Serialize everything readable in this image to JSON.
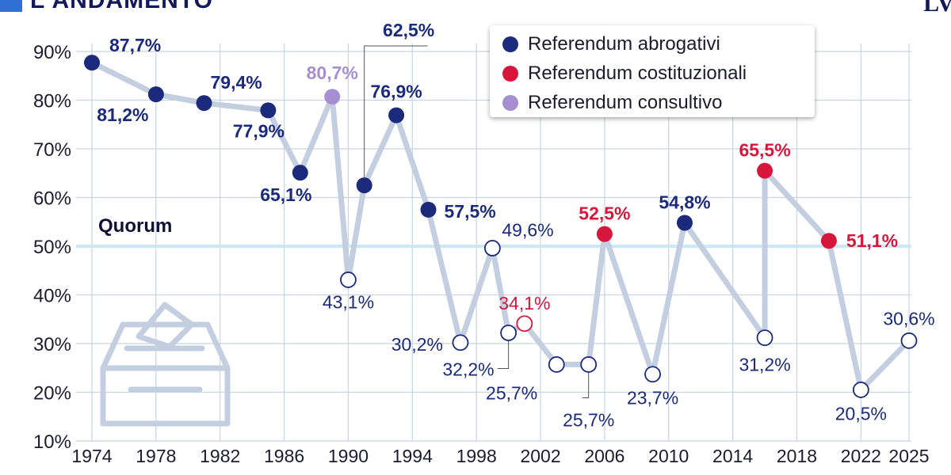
{
  "header": {
    "title": "L'ANDAMENTO",
    "logo": "LV"
  },
  "quorum": {
    "label": "Quorum",
    "value": 50
  },
  "colors": {
    "abrogativo": "#1b2a7a",
    "costituzionale": "#d6173b",
    "consultivo": "#a58fd0",
    "line": "#c3cfe0",
    "grid": "#c9d4e0",
    "quorum_line": "#cde8f5",
    "urn": "#c3cfe0"
  },
  "chart_data": {
    "type": "line",
    "title": "L'ANDAMENTO",
    "y_tick_labels": [
      "10%",
      "20%",
      "30%",
      "40%",
      "50%",
      "60%",
      "70%",
      "80%",
      "90%"
    ],
    "x_tick_labels": [
      "1974",
      "1978",
      "1982",
      "1986",
      "1990",
      "1994",
      "1998",
      "2002",
      "2006",
      "2010",
      "2014",
      "2018",
      "2022",
      "2025"
    ],
    "ylim": [
      10,
      90
    ],
    "xlim": [
      1974,
      2025
    ],
    "legend": [
      {
        "name": "Referendum abrogativi",
        "category": "abrogativo"
      },
      {
        "name": "Referendum costituzionali",
        "category": "costituzionale"
      },
      {
        "name": "Referendum consultivo",
        "category": "consultivo"
      }
    ],
    "points": [
      {
        "year": 1974,
        "value": 87.7,
        "label": "87,7%",
        "category": "abrogativo",
        "hollow": false
      },
      {
        "year": 1978,
        "value": 81.2,
        "label": "81,2%",
        "category": "abrogativo",
        "hollow": false
      },
      {
        "year": 1981,
        "value": 79.4,
        "label": "79,4%",
        "category": "abrogativo",
        "hollow": false
      },
      {
        "year": 1985,
        "value": 77.9,
        "label": "77,9%",
        "category": "abrogativo",
        "hollow": false
      },
      {
        "year": 1987,
        "value": 65.1,
        "label": "65,1%",
        "category": "abrogativo",
        "hollow": false
      },
      {
        "year": 1989,
        "value": 80.7,
        "label": "80,7%",
        "category": "consultivo",
        "hollow": false
      },
      {
        "year": 1990,
        "value": 43.1,
        "label": "43,1%",
        "category": "abrogativo",
        "hollow": true
      },
      {
        "year": 1991,
        "value": 62.5,
        "label": "62,5%",
        "category": "abrogativo",
        "hollow": false
      },
      {
        "year": 1993,
        "value": 76.9,
        "label": "76,9%",
        "category": "abrogativo",
        "hollow": false
      },
      {
        "year": 1995,
        "value": 57.5,
        "label": "57,5%",
        "category": "abrogativo",
        "hollow": false
      },
      {
        "year": 1997,
        "value": 30.2,
        "label": "30,2%",
        "category": "abrogativo",
        "hollow": true
      },
      {
        "year": 1999,
        "value": 49.6,
        "label": "49,6%",
        "category": "abrogativo",
        "hollow": true
      },
      {
        "year": 2000,
        "value": 32.2,
        "label": "32,2%",
        "category": "abrogativo",
        "hollow": true
      },
      {
        "year": 2001,
        "value": 34.1,
        "label": "34,1%",
        "category": "costituzionale",
        "hollow": true
      },
      {
        "year": 2003,
        "value": 25.7,
        "label": "25,7%",
        "category": "abrogativo",
        "hollow": true
      },
      {
        "year": 2005,
        "value": 25.7,
        "label": "25,7%",
        "category": "abrogativo",
        "hollow": true
      },
      {
        "year": 2006,
        "value": 52.5,
        "label": "52,5%",
        "category": "costituzionale",
        "hollow": false
      },
      {
        "year": 2009,
        "value": 23.7,
        "label": "23,7%",
        "category": "abrogativo",
        "hollow": true
      },
      {
        "year": 2011,
        "value": 54.8,
        "label": "54,8%",
        "category": "abrogativo",
        "hollow": false
      },
      {
        "year": 2016,
        "value": 31.2,
        "label": "31,2%",
        "category": "abrogativo",
        "hollow": true
      },
      {
        "year": 2016,
        "value": 65.5,
        "label": "65,5%",
        "category": "costituzionale",
        "hollow": false
      },
      {
        "year": 2020,
        "value": 51.1,
        "label": "51,1%",
        "category": "costituzionale",
        "hollow": false
      },
      {
        "year": 2022,
        "value": 20.5,
        "label": "20,5%",
        "category": "abrogativo",
        "hollow": true
      },
      {
        "year": 2025,
        "value": 30.6,
        "label": "30,6%",
        "category": "abrogativo",
        "hollow": true
      }
    ]
  }
}
